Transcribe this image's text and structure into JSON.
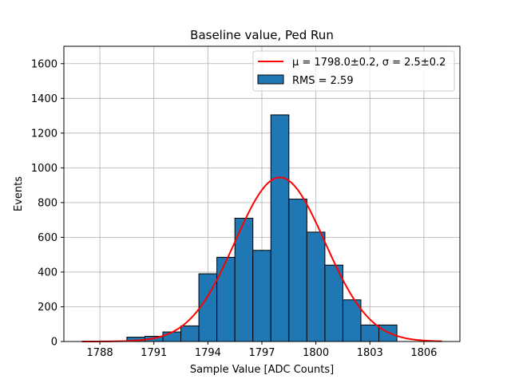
{
  "chart_data": {
    "type": "bar",
    "title": "Baseline value, Ped Run",
    "xlabel": "Sample Value [ADC Counts]",
    "ylabel": "Events",
    "xlim": [
      1786.0,
      1808.0
    ],
    "ylim": [
      0,
      1700
    ],
    "xticks": [
      1788,
      1791,
      1794,
      1797,
      1800,
      1803,
      1806
    ],
    "yticks": [
      0,
      200,
      400,
      600,
      800,
      1000,
      1200,
      1400,
      1600
    ],
    "grid": true,
    "legend_position": "top-right",
    "bar_color": "#1f77b4",
    "fit_color": "#ff0000",
    "histogram": {
      "name": "RMS = 2.59",
      "bins": [
        {
          "x0": 1789.5,
          "x1": 1790.5,
          "value": 25
        },
        {
          "x0": 1790.5,
          "x1": 1791.5,
          "value": 30
        },
        {
          "x0": 1791.5,
          "x1": 1792.5,
          "value": 55
        },
        {
          "x0": 1792.5,
          "x1": 1793.5,
          "value": 90
        },
        {
          "x0": 1793.5,
          "x1": 1794.5,
          "value": 390
        },
        {
          "x0": 1794.5,
          "x1": 1795.5,
          "value": 485
        },
        {
          "x0": 1795.5,
          "x1": 1796.5,
          "value": 710
        },
        {
          "x0": 1796.5,
          "x1": 1797.5,
          "value": 525
        },
        {
          "x0": 1797.5,
          "x1": 1798.5,
          "value": 1305
        },
        {
          "x0": 1798.5,
          "x1": 1799.5,
          "value": 820
        },
        {
          "x0": 1799.5,
          "x1": 1800.5,
          "value": 630
        },
        {
          "x0": 1800.5,
          "x1": 1801.5,
          "value": 440
        },
        {
          "x0": 1801.5,
          "x1": 1802.5,
          "value": 240
        },
        {
          "x0": 1802.5,
          "x1": 1803.5,
          "value": 95
        },
        {
          "x0": 1803.5,
          "x1": 1804.5,
          "value": 95
        }
      ]
    },
    "fit": {
      "name": "μ = 1798.0±0.2, σ = 2.5±0.2",
      "mu": 1798.0,
      "sigma": 2.5,
      "amplitude": 945,
      "x_range": [
        1787.0,
        1807.0
      ]
    }
  }
}
